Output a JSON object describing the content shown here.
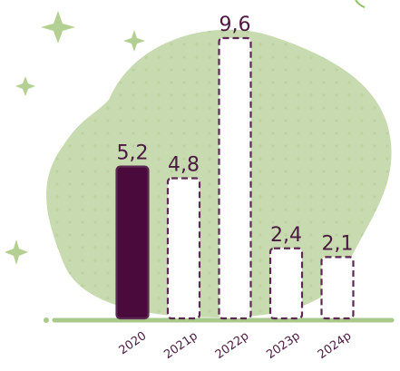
{
  "chart_data": {
    "type": "bar",
    "categories": [
      "2020",
      "2021p",
      "2022p",
      "2023p",
      "2024p"
    ],
    "values": [
      5.2,
      4.8,
      9.6,
      2.4,
      2.1
    ],
    "value_labels": [
      "5,2",
      "4,8",
      "9,6",
      "2,4",
      "2,1"
    ],
    "colors": [
      "#4b0a3c",
      "#ffffff",
      "#ffffff",
      "#ffffff",
      "#ffffff"
    ],
    "edge_color": "#5a2850",
    "dashed": [
      false,
      true,
      true,
      true,
      true
    ]
  }
}
